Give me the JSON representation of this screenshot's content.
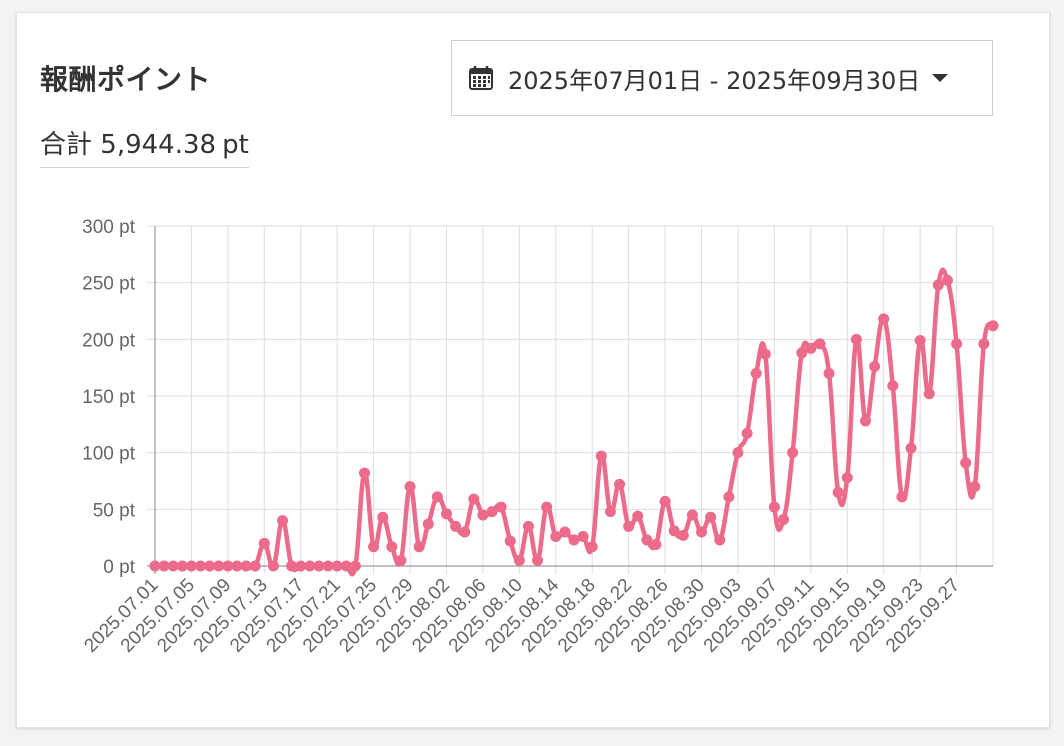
{
  "header": {
    "title": "報酬ポイント",
    "total_label": "合計",
    "total_value": "5,944.38",
    "total_unit": "pt",
    "date_range": "2025年07月01日 - 2025年09月30日",
    "calendar_icon": "calendar-icon",
    "dropdown_icon": "caret-down-icon"
  },
  "colors": {
    "line": "#ec6b8a",
    "grid": "#dedede"
  },
  "chart_data": {
    "type": "line",
    "y_unit": "pt",
    "ylim": [
      0,
      300
    ],
    "y_ticks": [
      "0 pt",
      "50 pt",
      "100 pt",
      "150 pt",
      "200 pt",
      "250 pt",
      "300 pt"
    ],
    "x_tick_labels": [
      "2025.07.01",
      "2025.07.05",
      "2025.07.09",
      "2025.07.13",
      "2025.07.17",
      "2025.07.21",
      "2025.07.25",
      "2025.07.29",
      "2025.08.02",
      "2025.08.06",
      "2025.08.10",
      "2025.08.14",
      "2025.08.18",
      "2025.08.22",
      "2025.08.26",
      "2025.08.30",
      "2025.09.03",
      "2025.09.07",
      "2025.09.11",
      "2025.09.15",
      "2025.09.19",
      "2025.09.23",
      "2025.09.27"
    ],
    "x_tick_every": 4,
    "grid": true,
    "legend": "none",
    "series": [
      {
        "values": [
          0,
          0,
          0,
          0,
          0,
          0,
          0,
          0,
          0,
          0,
          0,
          0,
          20,
          0,
          40,
          0,
          0,
          0,
          0,
          0,
          0,
          0,
          0,
          82,
          17,
          43,
          17,
          5,
          70,
          17,
          37,
          61,
          46,
          35,
          30,
          59,
          45,
          48,
          52,
          22,
          5,
          35,
          5,
          52,
          26,
          30,
          23,
          26,
          17,
          97,
          48,
          72,
          35,
          44,
          23,
          19,
          57,
          31,
          27,
          45,
          30,
          43,
          23,
          61,
          100,
          117,
          170,
          187,
          52,
          41,
          100,
          188,
          192,
          196,
          170,
          65,
          78,
          200,
          128,
          176,
          218,
          159,
          61,
          104,
          199,
          152,
          248,
          252,
          196,
          91,
          70,
          196,
          212
        ]
      }
    ]
  }
}
